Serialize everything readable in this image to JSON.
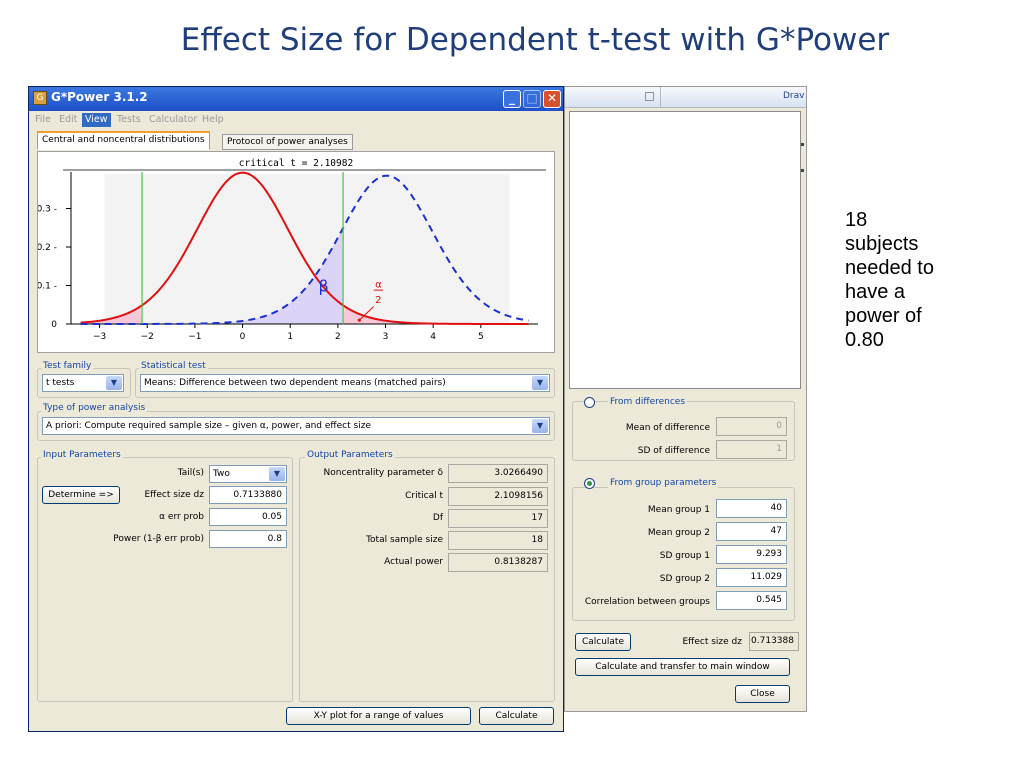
{
  "slide": {
    "title": "Effect Size for Dependent t-test with G*Power",
    "note_lines": [
      "18",
      "subjects",
      "needed to",
      "have a",
      "power of",
      "0.80"
    ]
  },
  "window": {
    "title": "G*Power 3.1.2",
    "menu": [
      "File",
      "Edit",
      "View",
      "Tests",
      "Calculator",
      "Help"
    ],
    "active_menu": "View",
    "tabs": [
      "Central and noncentral distributions",
      "Protocol of power analyses"
    ],
    "selected_tab": 0
  },
  "chart_data": {
    "type": "line",
    "title": "critical t = 2.10982",
    "critical_t": 2.10982,
    "noncentrality": 3.026649,
    "df": 17,
    "xlim": [
      -3.6,
      6.2
    ],
    "ylim": [
      0,
      0.4
    ],
    "x_ticks": [
      -3,
      -2,
      -1,
      0,
      1,
      2,
      3,
      4,
      5
    ],
    "y_ticks": [
      0,
      0.1,
      0.2,
      0.3
    ],
    "y_tick_labels": [
      "0",
      "0.1 -",
      "0.2 -",
      "0.3 -"
    ],
    "critical_lines": [
      -2.10982,
      2.10982
    ],
    "series": [
      {
        "style": "solid",
        "color": "#e01010"
      },
      {
        "style": "dashed",
        "color": "#1c2fd0"
      }
    ],
    "annotations": {
      "beta": "β",
      "alpha_num": "α",
      "alpha_den": "2"
    }
  },
  "test_family": {
    "label": "Test family",
    "value": "t tests"
  },
  "statistical_test": {
    "label": "Statistical test",
    "value": "Means: Difference between two dependent means (matched pairs)"
  },
  "power_analysis": {
    "label": "Type of power analysis",
    "value": "A priori: Compute required sample size – given α, power, and effect size"
  },
  "input": {
    "label": "Input Parameters",
    "tails_label": "Tail(s)",
    "tails_value": "Two",
    "determine_label": "Determine =>",
    "effect_label": "Effect size dz",
    "effect_value": "0.7133880",
    "alpha_label": "α err prob",
    "alpha_value": "0.05",
    "power_label": "Power (1-β err prob)",
    "power_value": "0.8"
  },
  "output": {
    "label": "Output Parameters",
    "rows": [
      {
        "label": "Noncentrality parameter δ",
        "value": "3.0266490"
      },
      {
        "label": "Critical t",
        "value": "2.1098156"
      },
      {
        "label": "Df",
        "value": "17"
      },
      {
        "label": "Total sample size",
        "value": "18"
      },
      {
        "label": "Actual power",
        "value": "0.8138287"
      }
    ]
  },
  "buttons": {
    "xy_plot": "X-Y plot for a range of values",
    "calculate": "Calculate"
  },
  "effect_dialog": {
    "top_bar_text": "Drav",
    "from_differences": {
      "label": "From differences",
      "mean_label": "Mean of difference",
      "mean_value": "0",
      "sd_label": "SD of difference",
      "sd_value": "1"
    },
    "from_groups": {
      "label": "From group parameters",
      "rows": [
        {
          "label": "Mean group 1",
          "value": "40"
        },
        {
          "label": "Mean group 2",
          "value": "47"
        },
        {
          "label": "SD group 1",
          "value": "9.293"
        },
        {
          "label": "SD group 2",
          "value": "11.029"
        },
        {
          "label": "Correlation between groups",
          "value": "0.545"
        }
      ]
    },
    "calculate_label": "Calculate",
    "effect_label": "Effect size dz",
    "effect_value": "0.713388",
    "transfer_label": "Calculate and transfer to main window",
    "close_label": "Close"
  }
}
